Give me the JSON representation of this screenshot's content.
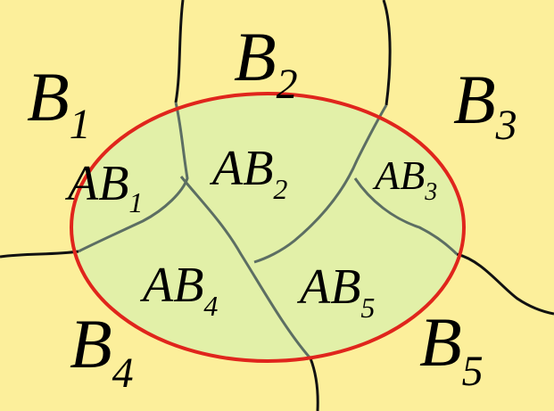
{
  "colors": {
    "background": "#fcef9b",
    "set_a_fill": "#e2f0a8",
    "set_a_outline": "#e0251c",
    "outer_boundary": "#111111",
    "inner_boundary": "#5c6e63"
  },
  "regions": {
    "b1": {
      "main": "B",
      "sub": "1"
    },
    "b2": {
      "main": "B",
      "sub": "2"
    },
    "b3": {
      "main": "B",
      "sub": "3"
    },
    "b4": {
      "main": "B",
      "sub": "4"
    },
    "b5": {
      "main": "B",
      "sub": "5"
    },
    "ab1": {
      "main": "AB",
      "sub": "1"
    },
    "ab2": {
      "main": "AB",
      "sub": "2"
    },
    "ab3": {
      "main": "AB",
      "sub": "3"
    },
    "ab4": {
      "main": "AB",
      "sub": "4"
    },
    "ab5": {
      "main": "AB",
      "sub": "5"
    }
  }
}
